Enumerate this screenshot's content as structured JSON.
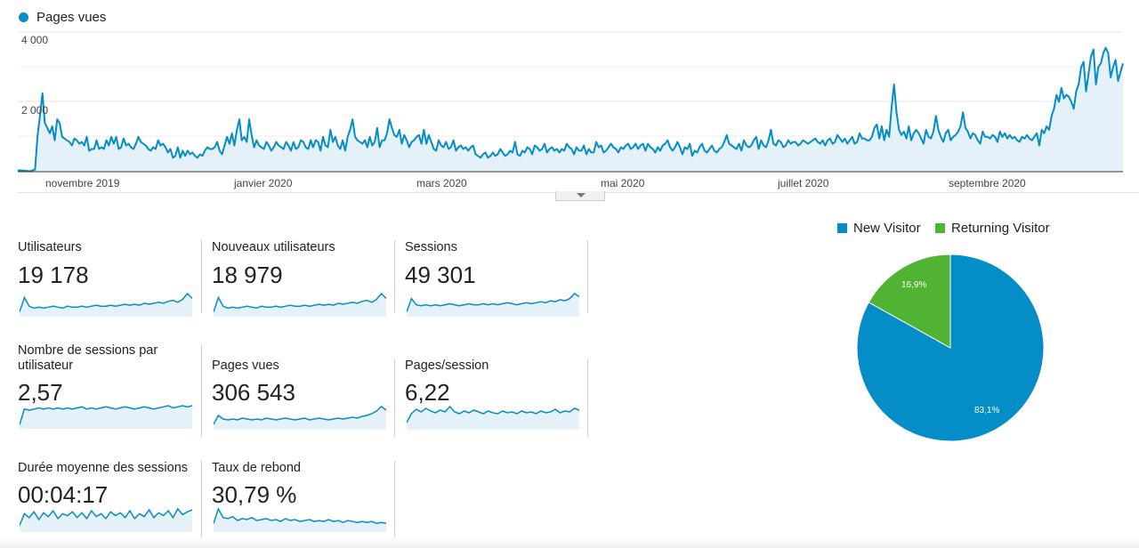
{
  "main_chart": {
    "legend_label": "Pages vues",
    "y_ticks": [
      "4 000",
      "2 000"
    ],
    "x_ticks": [
      "novembre 2019",
      "janvier 2020",
      "mars 2020",
      "mai 2020",
      "juillet 2020",
      "septembre 2020"
    ],
    "color": "#058dc7"
  },
  "chart_data": {
    "type": "area",
    "title": "",
    "series": [
      {
        "name": "Pages vues",
        "values": [
          30,
          40,
          30,
          30,
          20,
          10,
          40,
          60,
          1000,
          1600,
          2250,
          1400,
          1250,
          1100,
          1300,
          900,
          1500,
          1400,
          1000,
          950,
          900,
          850,
          750,
          950,
          900,
          800,
          850,
          750,
          1000,
          600,
          650,
          650,
          900,
          650,
          700,
          650,
          900,
          750,
          1000,
          800,
          1000,
          650,
          700,
          950,
          750,
          800,
          700,
          650,
          800,
          1000,
          850,
          800,
          750,
          650,
          600,
          700,
          650,
          900,
          750,
          800,
          700,
          550,
          650,
          400,
          450,
          700,
          400,
          600,
          450,
          600,
          500,
          550,
          450,
          400,
          500,
          450,
          600,
          700,
          650,
          650,
          700,
          850,
          600,
          500,
          750,
          1000,
          800,
          1100,
          750,
          1200,
          1500,
          900,
          1000,
          850,
          1500,
          1050,
          700,
          900,
          750,
          700,
          650,
          850,
          750,
          600,
          700,
          850,
          750,
          700,
          650,
          850,
          750,
          600,
          850,
          650,
          700,
          900,
          850,
          700,
          650,
          900,
          700,
          900,
          850,
          600,
          1000,
          750,
          700,
          1200,
          850,
          1000,
          750,
          650,
          900,
          600,
          1000,
          1200,
          1500,
          1000,
          900,
          850,
          800,
          900,
          700,
          1000,
          750,
          850,
          1250,
          700,
          900,
          900,
          1100,
          1500,
          1250,
          1050,
          1000,
          1200,
          800,
          1050,
          900,
          700,
          850,
          900,
          1000,
          1050,
          800,
          1200,
          800,
          1050,
          850,
          650,
          600,
          900,
          750,
          700,
          850,
          650,
          700,
          900,
          600,
          700,
          750,
          650,
          700,
          600,
          700,
          750,
          500,
          450,
          400,
          500,
          550,
          400,
          450,
          550,
          450,
          500,
          650,
          550,
          450,
          500,
          600,
          550,
          850,
          500,
          450,
          600,
          550,
          700,
          650,
          500,
          750,
          700,
          600,
          650,
          800,
          550,
          650,
          700,
          600,
          650,
          550,
          650,
          600,
          800,
          700,
          650,
          500,
          700,
          600,
          600,
          750,
          500,
          650,
          550,
          550,
          850,
          700,
          750,
          550,
          600,
          700,
          800,
          700,
          650,
          550,
          700,
          650,
          750,
          800,
          650,
          700,
          800,
          650,
          750,
          800,
          600,
          800,
          700,
          650,
          550,
          700,
          600,
          750,
          800,
          900,
          700,
          600,
          700,
          850,
          700,
          500,
          700,
          650,
          800,
          450,
          600,
          550,
          700,
          800,
          600,
          550,
          650,
          750,
          600,
          550,
          650,
          700,
          850,
          1050,
          800,
          750,
          700,
          650,
          800,
          600,
          900,
          750,
          700,
          750,
          900,
          1000,
          650,
          900,
          750,
          700,
          900,
          1200,
          800,
          750,
          900,
          850,
          700,
          750,
          900,
          800,
          850,
          850,
          750,
          800,
          900,
          850,
          800,
          850,
          900,
          950,
          850,
          800,
          900,
          750,
          900,
          950,
          800,
          850,
          1050,
          950,
          850,
          950,
          800,
          900,
          1000,
          800,
          850,
          1100,
          950,
          950,
          900,
          900,
          1000,
          1250,
          1350,
          950,
          1300,
          900,
          1200,
          1000,
          1850,
          2500,
          1700,
          1200,
          1050,
          1150,
          950,
          1300,
          900,
          1100,
          1200,
          1100,
          950,
          800,
          1200,
          1000,
          950,
          1150,
          1600,
          1200,
          1000,
          850,
          1100,
          1200,
          900,
          1000,
          1050,
          1150,
          1300,
          1700,
          1250,
          1150,
          950,
          1100,
          1050,
          900,
          800,
          1150,
          1000,
          1000,
          950,
          1050,
          1000,
          850,
          1150,
          1000,
          1100,
          950,
          1050,
          950,
          1000,
          900,
          850,
          1000,
          950,
          1050,
          950,
          900,
          1000,
          1100,
          750,
          1200,
          1100,
          1300,
          1200,
          1600,
          1800,
          2200,
          2000,
          2400,
          2100,
          2200,
          2150,
          2000,
          1800,
          2300,
          2500,
          3000,
          3150,
          2300,
          2800,
          3300,
          3500,
          2500,
          3000,
          3100,
          3400,
          3550,
          3400,
          2700,
          3000,
          3200,
          2600,
          2850,
          3100
        ]
      }
    ],
    "ylim": [
      0,
      4000
    ],
    "x_range": [
      "octobre 2019",
      "septembre 2020"
    ],
    "grid": true,
    "legend_position": "top-left"
  },
  "metrics": [
    {
      "label": "Utilisateurs",
      "value": "19 178",
      "spark": [
        3,
        18,
        9,
        7,
        8,
        7,
        8,
        9,
        8,
        7,
        9,
        8,
        8,
        9,
        8,
        9,
        10,
        9,
        9,
        10,
        9,
        10,
        11,
        10,
        11,
        10,
        12,
        11,
        12,
        13,
        12,
        14,
        15,
        13,
        16,
        22,
        17
      ]
    },
    {
      "label": "Nouveaux utilisateurs",
      "value": "18 979",
      "spark": [
        3,
        18,
        9,
        7,
        8,
        7,
        8,
        9,
        8,
        7,
        9,
        8,
        8,
        9,
        8,
        9,
        10,
        9,
        9,
        10,
        9,
        10,
        11,
        10,
        11,
        10,
        12,
        11,
        12,
        13,
        12,
        14,
        15,
        13,
        16,
        22,
        17
      ]
    },
    {
      "label": "Sessions",
      "value": "49 301",
      "spark": [
        3,
        16,
        10,
        9,
        10,
        9,
        10,
        9,
        10,
        11,
        10,
        9,
        10,
        11,
        10,
        10,
        11,
        10,
        11,
        10,
        11,
        12,
        11,
        10,
        11,
        12,
        11,
        12,
        13,
        12,
        14,
        13,
        15,
        14,
        16,
        21,
        18
      ]
    },
    {
      "label": "Nombre de sessions par utilisateur",
      "value": "2,57",
      "spark": [
        2,
        16,
        15,
        16,
        17,
        16,
        17,
        16,
        17,
        16,
        17,
        16,
        17,
        18,
        16,
        17,
        16,
        17,
        18,
        17,
        16,
        17,
        18,
        17,
        16,
        17,
        18,
        17,
        16,
        17,
        18,
        19,
        17,
        18,
        19,
        18,
        19
      ]
    },
    {
      "label": "Pages vues",
      "value": "306 543",
      "spark": [
        4,
        14,
        10,
        9,
        10,
        9,
        11,
        10,
        9,
        10,
        9,
        11,
        10,
        9,
        10,
        11,
        10,
        9,
        10,
        11,
        9,
        10,
        11,
        10,
        9,
        10,
        11,
        10,
        11,
        12,
        11,
        13,
        14,
        16,
        19,
        24,
        20
      ]
    },
    {
      "label": "Pages/session",
      "value": "6,22",
      "spark": [
        6,
        16,
        21,
        18,
        22,
        19,
        17,
        20,
        18,
        24,
        18,
        16,
        19,
        17,
        20,
        18,
        16,
        19,
        17,
        16,
        19,
        17,
        18,
        16,
        19,
        17,
        18,
        16,
        19,
        17,
        18,
        21,
        17,
        19,
        18,
        22,
        20
      ]
    },
    {
      "label": "Durée moyenne des sessions",
      "value": "00:04:17",
      "spark": [
        5,
        17,
        13,
        19,
        11,
        18,
        14,
        20,
        12,
        17,
        15,
        19,
        13,
        18,
        12,
        20,
        14,
        17,
        12,
        19,
        15,
        18,
        13,
        20,
        12,
        17,
        14,
        21,
        13,
        18,
        15,
        20,
        13,
        22,
        16,
        19,
        21
      ]
    },
    {
      "label": "Taux de rebond",
      "value": "30,79 %",
      "spark": [
        7,
        22,
        13,
        12,
        14,
        10,
        12,
        11,
        13,
        10,
        11,
        12,
        10,
        11,
        9,
        12,
        10,
        11,
        9,
        10,
        11,
        9,
        10,
        9,
        11,
        9,
        10,
        8,
        10,
        9,
        8,
        9,
        8,
        9,
        7,
        8,
        7
      ]
    }
  ],
  "pie": {
    "legend": [
      {
        "label": "New Visitor",
        "color": "#058dc7"
      },
      {
        "label": "Returning Visitor",
        "color": "#50b432"
      }
    ],
    "slices": [
      {
        "label": "New Visitor",
        "value": 83.1,
        "text": "83,1%",
        "color": "#058dc7"
      },
      {
        "label": "Returning Visitor",
        "value": 16.9,
        "text": "16,9%",
        "color": "#50b432"
      }
    ]
  }
}
